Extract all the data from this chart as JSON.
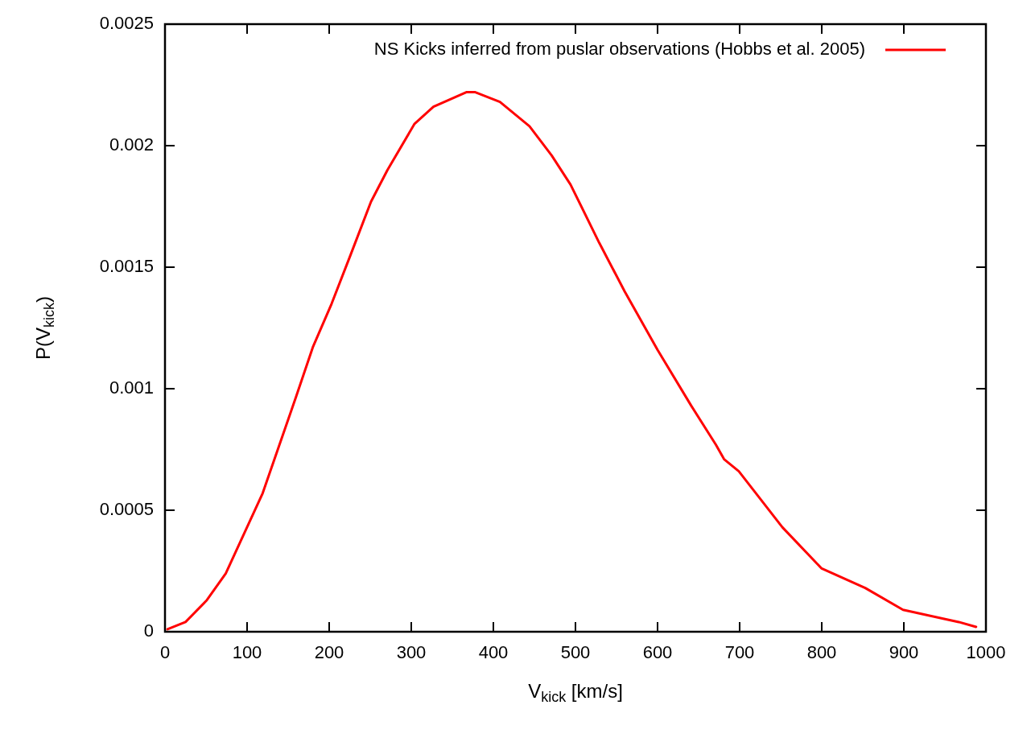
{
  "chart_data": {
    "type": "line",
    "xlabel": "V$_{kick}$ [km/s]",
    "ylabel": "P(V$_{kick}$)",
    "x": [
      3,
      25,
      51,
      74,
      119,
      160,
      180,
      203,
      226,
      251,
      271,
      304,
      327,
      367,
      378,
      408,
      444,
      471,
      494,
      529,
      560,
      600,
      641,
      671,
      681,
      699,
      752,
      800,
      853,
      899,
      967,
      988
    ],
    "series": [
      {
        "name": "NS Kicks inferred from puslar observations (Hobbs et al. 2005)",
        "color": "#ff0000",
        "values": [
          1e-05,
          4e-05,
          0.00013,
          0.00024,
          0.00057,
          0.00097,
          0.00117,
          0.00135,
          0.00155,
          0.00177,
          0.0019,
          0.00209,
          0.00216,
          0.00222,
          0.00222,
          0.00218,
          0.00208,
          0.00196,
          0.00184,
          0.0016,
          0.0014,
          0.00116,
          0.00093,
          0.00077,
          0.00071,
          0.00066,
          0.00043,
          0.00026,
          0.00018,
          9e-05,
          4e-05,
          2e-05
        ]
      }
    ],
    "xlim": [
      0,
      1000
    ],
    "xticks": [
      0,
      100,
      200,
      300,
      400,
      500,
      600,
      700,
      800,
      900,
      1000
    ],
    "ylim": [
      0,
      0.0025
    ],
    "yticks": [
      0,
      0.0005,
      0.001,
      0.0015,
      0.002,
      0.0025
    ],
    "legend": "top right",
    "grid": false,
    "marker": "none",
    "line_style": "solid"
  }
}
